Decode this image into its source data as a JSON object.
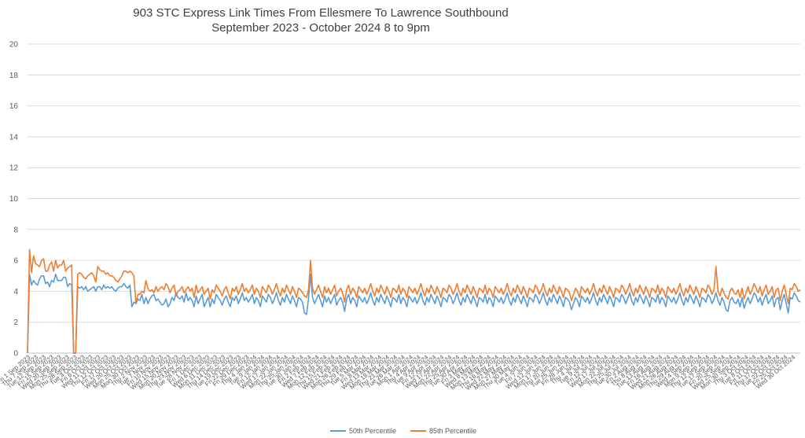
{
  "chart_data": {
    "type": "line",
    "title": "903 STC Express Link Times From Ellesmere To Lawrence Southbound",
    "subtitle": "September 2023 - October 2024 8 to 9pm",
    "xlabel": "",
    "ylabel": "",
    "ylim": [
      0,
      20
    ],
    "y_ticks": [
      0,
      2,
      4,
      6,
      8,
      10,
      12,
      14,
      16,
      18,
      20
    ],
    "grid": true,
    "legend_position": "bottom",
    "x_tick_labels": [
      "Fri 1 Sep 2023",
      "Thu 7 Sep 2023",
      "Tue 12 Sep 2023",
      "Fri 15 Sep 2023",
      "Wed 20 Sep 2023",
      "Mon 25 Sep 2023",
      "Thu 28 Sep 2023",
      "Tue 3 Oct 2023",
      "Fri 6 Oct 2023",
      "Wed 11 Oct 2023",
      "Thu 12 Oct 2023",
      "Fri 17 Oct 2023",
      "Wed 20 Oct 2023",
      "Mon 25 Oct 2023",
      "Mon 30 Oct 2023",
      "Thu 2 Nov 2023",
      "Tue 7 Nov 2023",
      "Fri 10 Nov 2023",
      "Wed 15 Nov 2023",
      "Mon 20 Nov 2023",
      "Thu 23 Nov 2023",
      "Tue 28 Nov 2023",
      "Fri 1 Dec 2023",
      "Wed 6 Dec 2023",
      "Mon 11 Dec 2023",
      "Thu 14 Dec 2023",
      "Tue 19 Dec 2023",
      "Fri 22 Dec 2023",
      "Fri 29 Dec 2023",
      "Thu 4 Jan 2024",
      "Tue 9 Jan 2024",
      "Fri 12 Jan 2024",
      "Wed 17 Jan 2024",
      "Mon 22 Jan 2024",
      "Thu 25 Jan 2024",
      "Tue 30 Jan 2024",
      "Fri 2 Feb 2024",
      "Wed 7 Feb 2024",
      "Mon 12 Feb 2024",
      "Thu 15 Feb 2024",
      "Wed 21 Feb 2024",
      "Mon 26 Feb 2024",
      "Thu 29 Feb 2024",
      "Tue 5 Mar 2024",
      "Fri 8 Mar 2024",
      "Wed 13 Mar 2024",
      "Mon 18 Mar 2024",
      "Thu 21 Mar 2024",
      "Tue 26 Mar 2024",
      "Mon 1 Apr 2024",
      "Thu 4 Apr 2024",
      "Tue 9 Apr 2024",
      "Fri 12 Apr 2024",
      "Wed 17 Apr 2024",
      "Mon 22 Apr 2024",
      "Thu 25 Apr 2024",
      "Tue 30 Apr 2024",
      "Fri 3 May 2024",
      "Wed 8 May 2024",
      "Mon 13 May 2024",
      "Thu 16 May 2024",
      "Wed 22 May 2024",
      "Mon 27 May 2024",
      "Thu 30 May 2024",
      "Tue 4 Jun 2024",
      "Fri 7 Jun 2024",
      "Wed 12 Jun 2024",
      "Mon 17 Jun 2024",
      "Thu 20 Jun 2024",
      "Tue 25 Jun 2024",
      "Fri 28 Jun 2024",
      "Thu 4 Jul 2024",
      "Tue 9 Jul 2024",
      "Fri 12 Jul 2024",
      "Wed 17 Jul 2024",
      "Mon 22 Jul 2024",
      "Thu 25 Jul 2024",
      "Tue 30 Jul 2024",
      "Fri 2 Aug 2024",
      "Thu 8 Aug 2024",
      "Tue 13 Aug 2024",
      "Fri 16 Aug 2024",
      "Wed 21 Aug 2024",
      "Mon 26 Aug 2024",
      "Thu 29 Aug 2024",
      "Wed 4 Sep 2024",
      "Mon 9 Sep 2024",
      "Thu 12 Sep 2024",
      "Tue 17 Sep 2024",
      "Fri 20 Sep 2024",
      "Wed 25 Sep 2024",
      "Mon 30 Sep 2024",
      "Thu 3 Oct 2024",
      "Tue 8 Oct 2024",
      "Fri 11 Oct 2024",
      "Thu 17 Oct 2024",
      "Tue 22 Oct 2024",
      "Fri 25 Oct 2024",
      "Wed 30 Oct 2024"
    ],
    "series": [
      {
        "name": "50th Percentile",
        "color": "#5b9bd5",
        "values": [
          0,
          5.1,
          4.4,
          4.7,
          4.5,
          4.4,
          4.8,
          5.0,
          5.0,
          4.5,
          4.6,
          4.3,
          4.7,
          4.6,
          5.1,
          4.7,
          4.7,
          4.7,
          4.9,
          4.9,
          4.3,
          4.5,
          4.4,
          0,
          0,
          4.3,
          4.2,
          4.3,
          4.1,
          4.3,
          4.0,
          4.1,
          4.2,
          4.3,
          4.0,
          4.3,
          4.3,
          4.1,
          4.4,
          4.2,
          4.3,
          4.2,
          4.3,
          4.1,
          4.0,
          4.2,
          4.3,
          4.3,
          4.5,
          4.3,
          4.2,
          4.4,
          3.0,
          3.3,
          3.2,
          3.5,
          3.4,
          3.8,
          3.2,
          3.6,
          3.2,
          3.5,
          3.7,
          3.8,
          3.4,
          3.5,
          3.3,
          3.1,
          3.2,
          3.5,
          3.0,
          3.2,
          3.6,
          3.4,
          3.9,
          3.6,
          3.5,
          3.7,
          3.3,
          3.9,
          3.4,
          3.6,
          3.4,
          3.0,
          3.7,
          3.2,
          3.5,
          3.8,
          3.0,
          3.3,
          3.6,
          3.0,
          3.5,
          3.2,
          3.8,
          3.6,
          3.4,
          3.1,
          3.5,
          3.7,
          3.3,
          3.0,
          3.6,
          3.4,
          3.7,
          3.2,
          3.5,
          3.9,
          3.4,
          3.6,
          3.3,
          3.5,
          3.8,
          3.2,
          3.6,
          3.4,
          3.0,
          3.7,
          3.5,
          3.3,
          3.8,
          3.6,
          3.2,
          3.5,
          3.9,
          3.4,
          3.1,
          3.6,
          3.3,
          3.8,
          3.5,
          3.2,
          3.7,
          3.4,
          3.0,
          3.6,
          3.5,
          3.3,
          2.6,
          2.5,
          3.5,
          5.1,
          3.6,
          3.2,
          3.5,
          3.8,
          3.4,
          3.0,
          3.7,
          3.3,
          3.6,
          3.2,
          3.5,
          3.8,
          3.1,
          3.4,
          3.6,
          3.3,
          2.7,
          3.5,
          3.8,
          3.2,
          3.6,
          3.4,
          3.0,
          3.7,
          3.5,
          3.3,
          3.6,
          3.2,
          3.5,
          3.9,
          3.4,
          3.1,
          3.6,
          3.3,
          3.8,
          3.5,
          3.2,
          3.7,
          3.4,
          3.0,
          3.6,
          3.5,
          3.3,
          3.8,
          3.2,
          3.6,
          3.4,
          3.0,
          3.7,
          3.5,
          3.3,
          3.6,
          3.2,
          3.5,
          3.9,
          3.4,
          3.1,
          3.6,
          3.3,
          3.8,
          3.5,
          3.2,
          3.7,
          3.4,
          3.0,
          3.6,
          3.5,
          3.3,
          3.8,
          3.6,
          3.2,
          3.5,
          3.9,
          3.4,
          3.1,
          3.6,
          3.3,
          3.8,
          3.5,
          3.2,
          3.7,
          3.4,
          3.0,
          3.6,
          3.5,
          3.3,
          3.8,
          3.2,
          3.6,
          3.4,
          3.0,
          3.7,
          3.5,
          3.3,
          3.6,
          3.2,
          3.5,
          3.9,
          3.4,
          3.1,
          3.6,
          3.3,
          3.8,
          3.5,
          3.2,
          3.7,
          3.4,
          3.0,
          3.6,
          3.5,
          3.3,
          3.8,
          3.6,
          3.2,
          3.5,
          3.9,
          3.4,
          3.1,
          3.6,
          3.3,
          3.8,
          3.5,
          3.2,
          3.7,
          3.4,
          3.0,
          3.6,
          3.5,
          3.3,
          2.8,
          3.2,
          3.6,
          3.4,
          3.0,
          3.7,
          3.5,
          3.3,
          3.6,
          3.2,
          3.5,
          3.9,
          3.4,
          3.1,
          3.6,
          3.3,
          3.8,
          3.5,
          3.2,
          3.7,
          3.4,
          3.0,
          3.6,
          3.5,
          3.3,
          3.8,
          3.6,
          3.2,
          3.5,
          3.9,
          3.4,
          3.1,
          3.6,
          3.3,
          3.8,
          3.5,
          3.2,
          3.7,
          3.4,
          3.0,
          3.6,
          3.5,
          3.3,
          3.8,
          3.2,
          3.6,
          3.4,
          3.0,
          3.7,
          3.5,
          3.3,
          3.6,
          3.2,
          3.5,
          3.9,
          3.4,
          3.1,
          3.6,
          3.3,
          3.8,
          3.5,
          3.2,
          3.7,
          3.4,
          3.0,
          3.6,
          3.5,
          3.3,
          3.8,
          3.6,
          3.2,
          3.5,
          3.9,
          3.4,
          3.1,
          3.6,
          3.3,
          2.8,
          2.7,
          3.4,
          3.6,
          3.3,
          3.2,
          3.5,
          3.0,
          3.6,
          2.9,
          3.3,
          3.6,
          3.2,
          3.5,
          3.9,
          3.7,
          3.3,
          3.6,
          3.1,
          3.5,
          3.8,
          3.2,
          3.4,
          3.7,
          3.0,
          3.5,
          3.6,
          2.8,
          3.4,
          3.8,
          3.2,
          2.6,
          3.6,
          3.5,
          3.9,
          3.7,
          3.4,
          3.3
        ]
      },
      {
        "name": "85th Percentile",
        "color": "#ed7d31",
        "values": [
          0,
          6.7,
          5.2,
          6.3,
          5.8,
          5.7,
          5.6,
          6.0,
          6.1,
          5.3,
          5.3,
          5.7,
          5.9,
          5.3,
          6.0,
          5.5,
          5.7,
          5.7,
          6.0,
          5.3,
          5.5,
          5.6,
          5.7,
          0,
          0,
          5.1,
          5.2,
          5.1,
          4.9,
          4.8,
          5.0,
          5.1,
          5.2,
          5.0,
          4.6,
          5.6,
          5.4,
          5.3,
          5.3,
          5.1,
          5.2,
          5.0,
          5.0,
          4.9,
          4.7,
          4.6,
          4.8,
          5.0,
          5.3,
          5.3,
          5.2,
          5.3,
          5.2,
          5.0,
          3.2,
          3.8,
          3.8,
          4.0,
          3.9,
          4.7,
          4.2,
          4.0,
          4.1,
          3.9,
          4.3,
          4.0,
          4.2,
          4.3,
          4.1,
          4.5,
          4.3,
          3.9,
          4.2,
          4.4,
          3.7,
          4.0,
          4.1,
          4.3,
          3.9,
          4.1,
          4.3,
          4.0,
          4.2,
          3.6,
          4.4,
          3.9,
          4.1,
          4.3,
          3.8,
          4.0,
          4.2,
          3.5,
          4.1,
          3.9,
          4.4,
          4.2,
          4.0,
          3.7,
          4.1,
          4.3,
          3.9,
          3.5,
          4.2,
          4.0,
          4.3,
          3.8,
          4.1,
          4.5,
          4.0,
          4.2,
          3.9,
          4.1,
          4.4,
          3.8,
          4.2,
          4.0,
          3.6,
          4.3,
          4.1,
          3.9,
          4.4,
          4.2,
          3.8,
          4.1,
          4.5,
          4.0,
          3.7,
          4.2,
          3.9,
          4.4,
          4.1,
          3.8,
          4.3,
          4.0,
          3.6,
          4.2,
          4.1,
          3.9,
          3.7,
          3.6,
          4.1,
          6.0,
          4.2,
          3.8,
          4.1,
          4.4,
          4.0,
          3.6,
          4.3,
          3.9,
          4.2,
          3.8,
          4.1,
          4.4,
          3.7,
          4.0,
          4.2,
          3.9,
          3.3,
          4.1,
          4.4,
          3.8,
          4.2,
          4.0,
          3.6,
          4.3,
          4.1,
          3.9,
          4.2,
          3.8,
          4.1,
          4.5,
          4.0,
          3.7,
          4.2,
          3.9,
          4.4,
          4.1,
          3.8,
          4.3,
          4.0,
          3.6,
          4.2,
          4.1,
          3.9,
          4.4,
          3.8,
          4.2,
          4.0,
          3.6,
          4.3,
          4.1,
          3.9,
          4.2,
          3.8,
          4.1,
          4.5,
          4.0,
          3.7,
          4.2,
          3.9,
          4.4,
          4.1,
          3.8,
          4.3,
          4.0,
          3.6,
          4.2,
          4.1,
          3.9,
          4.4,
          4.2,
          3.8,
          4.1,
          4.5,
          4.0,
          3.7,
          4.2,
          3.9,
          4.4,
          4.1,
          3.8,
          4.3,
          4.0,
          3.6,
          4.2,
          4.1,
          3.9,
          4.4,
          3.8,
          4.2,
          4.0,
          3.6,
          4.3,
          4.1,
          3.9,
          4.2,
          3.8,
          4.1,
          4.5,
          4.0,
          3.7,
          4.2,
          3.9,
          4.4,
          4.1,
          3.8,
          4.3,
          4.0,
          3.6,
          4.2,
          4.1,
          3.9,
          4.4,
          4.2,
          3.8,
          4.1,
          4.5,
          4.0,
          3.7,
          4.2,
          3.9,
          4.4,
          4.1,
          3.8,
          4.3,
          4.0,
          3.6,
          4.2,
          4.1,
          3.9,
          3.4,
          3.8,
          4.2,
          4.0,
          3.6,
          4.3,
          4.1,
          3.9,
          4.2,
          3.8,
          4.1,
          4.5,
          4.0,
          3.7,
          4.2,
          3.9,
          4.4,
          4.1,
          3.8,
          4.3,
          4.0,
          3.6,
          4.2,
          4.1,
          3.9,
          4.4,
          4.2,
          3.8,
          4.1,
          4.5,
          4.0,
          3.7,
          4.2,
          3.9,
          4.4,
          4.1,
          3.8,
          4.3,
          4.0,
          3.6,
          4.2,
          4.1,
          3.9,
          4.4,
          3.8,
          4.2,
          4.0,
          3.6,
          4.3,
          4.1,
          3.9,
          4.2,
          3.8,
          4.1,
          4.5,
          4.0,
          3.7,
          4.2,
          3.9,
          4.4,
          4.1,
          3.8,
          4.3,
          4.0,
          3.6,
          4.2,
          4.1,
          3.9,
          4.4,
          4.2,
          3.8,
          4.1,
          5.6,
          4.0,
          3.7,
          4.2,
          3.9,
          3.6,
          3.5,
          4.0,
          4.2,
          3.9,
          3.8,
          4.1,
          3.6,
          4.2,
          3.5,
          3.9,
          4.3,
          3.8,
          4.1,
          4.5,
          4.2,
          3.9,
          4.3,
          3.7,
          4.1,
          4.4,
          3.8,
          4.0,
          4.3,
          3.6,
          4.1,
          4.2,
          3.4,
          4.0,
          4.4,
          3.8,
          3.2,
          4.2,
          4.1,
          4.5,
          4.3,
          4.0,
          4.1
        ]
      }
    ]
  }
}
